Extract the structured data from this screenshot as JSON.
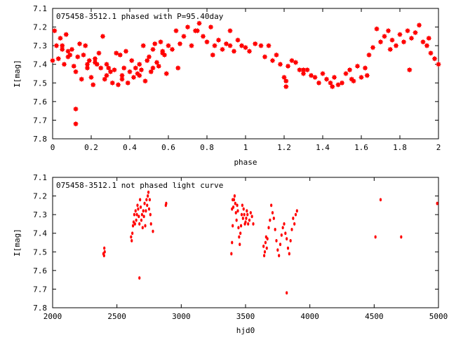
{
  "chart_data": [
    {
      "type": "scatter",
      "title": "075458-3512.1 phased with P=95.40day",
      "xlabel": "phase",
      "ylabel": "I[mag]",
      "xlim": [
        0,
        2
      ],
      "ylim": [
        7.8,
        7.1
      ],
      "y_inverted": true,
      "x_ticks": [
        "0",
        "0.2",
        "0.4",
        "0.6",
        "0.8",
        "1",
        "1.2",
        "1.4",
        "1.6",
        "1.8",
        "2"
      ],
      "y_ticks": [
        "7.1",
        "7.2",
        "7.3",
        "7.4",
        "7.5",
        "7.6",
        "7.7",
        "7.8"
      ],
      "grid": false,
      "marker": "star",
      "color": "#ff0000",
      "x": [
        0.0,
        0.01,
        0.02,
        0.03,
        0.04,
        0.05,
        0.06,
        0.07,
        0.08,
        0.09,
        0.1,
        0.11,
        0.12,
        0.13,
        0.14,
        0.15,
        0.16,
        0.17,
        0.18,
        0.19,
        0.2,
        0.21,
        0.22,
        0.23,
        0.24,
        0.25,
        0.26,
        0.27,
        0.28,
        0.29,
        0.3,
        0.31,
        0.32,
        0.33,
        0.34,
        0.35,
        0.36,
        0.37,
        0.38,
        0.39,
        0.4,
        0.41,
        0.42,
        0.43,
        0.44,
        0.45,
        0.46,
        0.47,
        0.48,
        0.49,
        0.5,
        0.51,
        0.52,
        0.53,
        0.54,
        0.55,
        0.56,
        0.57,
        0.58,
        0.59,
        0.6,
        0.62,
        0.64,
        0.66,
        0.68,
        0.7,
        0.72,
        0.74,
        0.76,
        0.78,
        0.8,
        0.82,
        0.84,
        0.86,
        0.88,
        0.9,
        0.92,
        0.94,
        0.96,
        0.98,
        1.0,
        1.02,
        1.05,
        1.08,
        1.1,
        1.12,
        1.14,
        1.16,
        1.18,
        1.2,
        1.22,
        1.24,
        1.26,
        1.28,
        1.3,
        1.32,
        1.34,
        1.36,
        1.38,
        1.4,
        1.42,
        1.44,
        1.46,
        1.48,
        1.5,
        1.52,
        1.54,
        1.56,
        1.58,
        1.6,
        1.62,
        1.64,
        1.66,
        1.68,
        1.7,
        1.72,
        1.74,
        1.76,
        1.78,
        1.8,
        1.82,
        1.84,
        1.86,
        1.88,
        1.9,
        1.92,
        1.94,
        1.96,
        1.98,
        2.0,
        0.12,
        0.12,
        0.05,
        0.08,
        0.18,
        0.22,
        0.28,
        0.36,
        0.45,
        0.52,
        0.57,
        0.65,
        0.75,
        0.83,
        0.92,
        1.21,
        1.21,
        1.3,
        1.45,
        1.55,
        1.63,
        1.75,
        1.85,
        1.95
      ],
      "y": [
        7.38,
        7.22,
        7.3,
        7.37,
        7.26,
        7.32,
        7.4,
        7.24,
        7.33,
        7.35,
        7.32,
        7.41,
        7.44,
        7.36,
        7.29,
        7.48,
        7.35,
        7.3,
        7.4,
        7.38,
        7.47,
        7.51,
        7.37,
        7.4,
        7.34,
        7.42,
        7.25,
        7.48,
        7.4,
        7.42,
        7.44,
        7.5,
        7.43,
        7.34,
        7.51,
        7.35,
        7.46,
        7.42,
        7.33,
        7.5,
        7.44,
        7.38,
        7.47,
        7.42,
        7.45,
        7.4,
        7.43,
        7.3,
        7.49,
        7.38,
        7.36,
        7.44,
        7.32,
        7.29,
        7.39,
        7.41,
        7.28,
        7.33,
        7.35,
        7.45,
        7.3,
        7.32,
        7.22,
        7.29,
        7.25,
        7.2,
        7.3,
        7.22,
        7.18,
        7.25,
        7.28,
        7.2,
        7.3,
        7.27,
        7.32,
        7.29,
        7.3,
        7.33,
        7.27,
        7.3,
        7.31,
        7.33,
        7.29,
        7.3,
        7.36,
        7.3,
        7.38,
        7.35,
        7.4,
        7.47,
        7.41,
        7.38,
        7.39,
        7.43,
        7.45,
        7.43,
        7.46,
        7.47,
        7.5,
        7.45,
        7.48,
        7.5,
        7.47,
        7.51,
        7.5,
        7.45,
        7.43,
        7.49,
        7.41,
        7.47,
        7.42,
        7.35,
        7.31,
        7.21,
        7.28,
        7.25,
        7.22,
        7.27,
        7.3,
        7.24,
        7.28,
        7.22,
        7.26,
        7.23,
        7.19,
        7.28,
        7.3,
        7.34,
        7.37,
        7.4,
        7.64,
        7.72,
        7.3,
        7.36,
        7.42,
        7.39,
        7.46,
        7.48,
        7.46,
        7.42,
        7.34,
        7.42,
        7.22,
        7.35,
        7.22,
        7.49,
        7.52,
        7.43,
        7.52,
        7.48,
        7.46,
        7.32,
        7.43,
        7.26
      ],
      "annotation": ""
    },
    {
      "type": "scatter",
      "title": "075458-3512.1 not phased light curve",
      "xlabel": "hjd0",
      "ylabel": "I[mag]",
      "xlim": [
        2000,
        5000
      ],
      "ylim": [
        7.8,
        7.1
      ],
      "y_inverted": true,
      "x_ticks": [
        "2000",
        "2500",
        "3000",
        "3500",
        "4000",
        "4500",
        "5000"
      ],
      "y_ticks": [
        "7.1",
        "7.2",
        "7.3",
        "7.4",
        "7.5",
        "7.6",
        "7.7",
        "7.8"
      ],
      "grid": false,
      "marker": "dot",
      "color": "#ff0000",
      "x": [
        2400,
        2402,
        2405,
        2395,
        2610,
        2615,
        2620,
        2625,
        2630,
        2635,
        2640,
        2645,
        2650,
        2655,
        2660,
        2665,
        2670,
        2675,
        2680,
        2685,
        2690,
        2695,
        2700,
        2705,
        2710,
        2715,
        2720,
        2725,
        2730,
        2735,
        2740,
        2745,
        2750,
        2755,
        2760,
        2765,
        2780,
        2675,
        2880,
        2883,
        3390,
        3395,
        3400,
        3405,
        3410,
        3415,
        3420,
        3425,
        3430,
        3435,
        3440,
        3445,
        3450,
        3455,
        3460,
        3465,
        3470,
        3475,
        3480,
        3485,
        3490,
        3495,
        3500,
        3505,
        3510,
        3515,
        3520,
        3530,
        3540,
        3550,
        3560,
        3395,
        3400,
        3640,
        3645,
        3650,
        3655,
        3660,
        3665,
        3670,
        3680,
        3690,
        3700,
        3710,
        3720,
        3730,
        3740,
        3750,
        3760,
        3770,
        3780,
        3790,
        3800,
        3810,
        3820,
        3830,
        3840,
        3850,
        3860,
        3870,
        3880,
        3890,
        3900,
        3820,
        4510,
        4550,
        4710,
        4990
      ],
      "y": [
        7.52,
        7.48,
        7.5,
        7.51,
        7.42,
        7.44,
        7.4,
        7.36,
        7.34,
        7.3,
        7.35,
        7.28,
        7.33,
        7.3,
        7.25,
        7.27,
        7.31,
        7.35,
        7.22,
        7.26,
        7.33,
        7.3,
        7.37,
        7.28,
        7.31,
        7.24,
        7.36,
        7.28,
        7.22,
        7.25,
        7.2,
        7.18,
        7.27,
        7.22,
        7.3,
        7.35,
        7.39,
        7.64,
        7.25,
        7.24,
        7.51,
        7.45,
        7.36,
        7.26,
        7.22,
        7.2,
        7.24,
        7.29,
        7.33,
        7.25,
        7.28,
        7.37,
        7.42,
        7.46,
        7.4,
        7.36,
        7.3,
        7.25,
        7.32,
        7.27,
        7.3,
        7.35,
        7.34,
        7.32,
        7.28,
        7.3,
        7.35,
        7.33,
        7.29,
        7.31,
        7.35,
        7.27,
        7.22,
        7.47,
        7.52,
        7.5,
        7.45,
        7.42,
        7.48,
        7.43,
        7.37,
        7.33,
        7.25,
        7.29,
        7.32,
        7.38,
        7.44,
        7.49,
        7.52,
        7.46,
        7.41,
        7.37,
        7.35,
        7.4,
        7.43,
        7.48,
        7.51,
        7.44,
        7.38,
        7.32,
        7.35,
        7.3,
        7.28,
        7.72,
        7.42,
        7.22,
        7.42,
        7.24
      ],
      "annotation": ""
    }
  ]
}
